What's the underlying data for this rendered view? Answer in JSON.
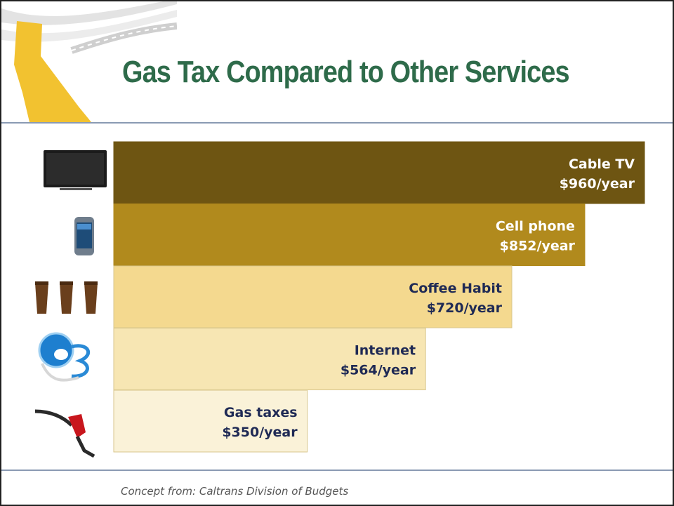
{
  "title": "Gas Tax Compared to Other Services",
  "footer": "Concept from: Caltrans Division of Budgets",
  "colors": {
    "title": "#2e6b4a",
    "bars": [
      "#6e5512",
      "#b18a1d",
      "#f4d98f",
      "#f7e6b3",
      "#faf2d8"
    ],
    "labels": [
      "#ffffff",
      "#ffffff",
      "#1f2a55",
      "#1f2a55",
      "#1f2a55"
    ]
  },
  "icons": [
    "tv-icon",
    "cell-phone-icon",
    "coffee-cups-icon",
    "internet-globe-icon",
    "gas-pump-icon"
  ],
  "chart_data": {
    "type": "bar",
    "orientation": "horizontal",
    "categories": [
      "Cable TV",
      "Cell phone",
      "Coffee Habit",
      "Internet",
      "Gas taxes"
    ],
    "values": [
      960,
      852,
      720,
      564,
      350
    ],
    "value_labels": [
      "$960/year",
      "$852/year",
      "$720/year",
      "$564/year",
      "$350/year"
    ],
    "title": "Gas Tax Compared to Other Services",
    "xlim": [
      0,
      960
    ],
    "grid": false
  }
}
